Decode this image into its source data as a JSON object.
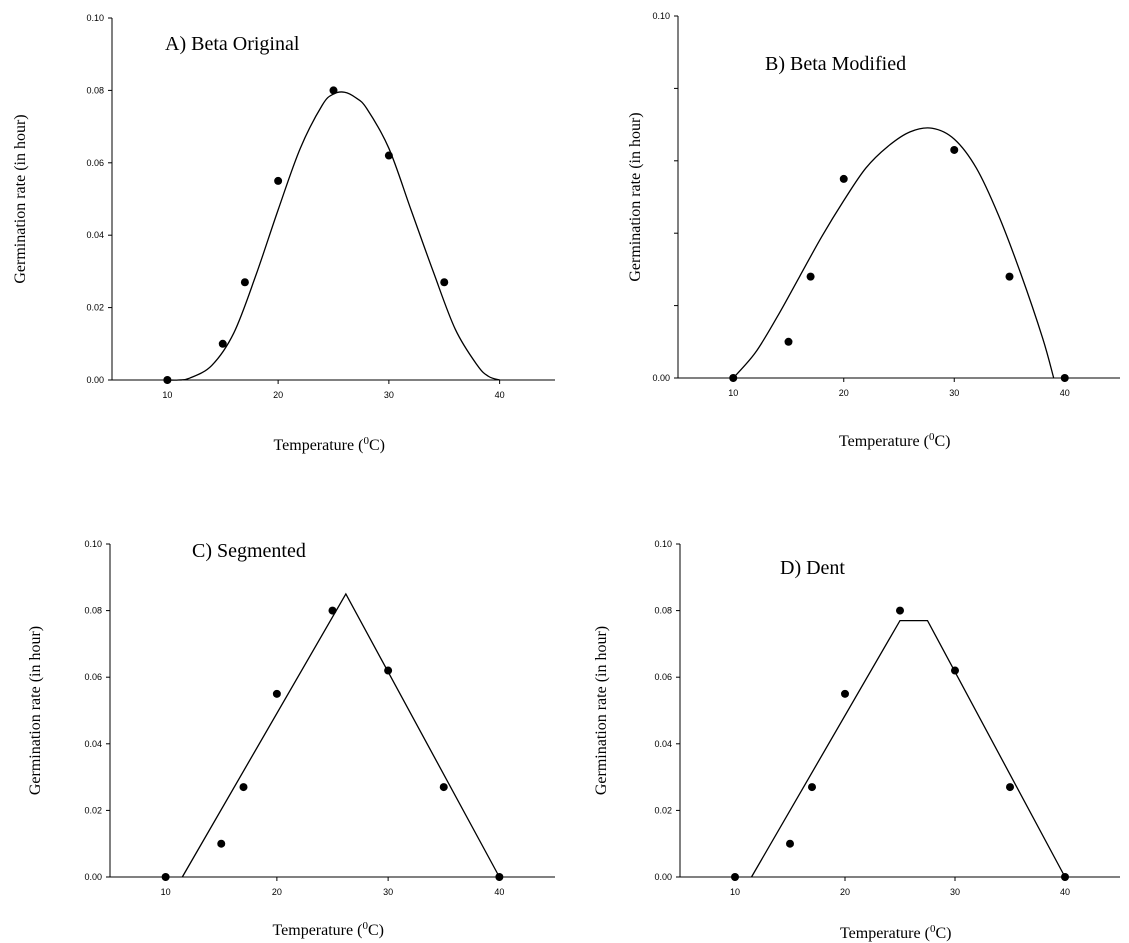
{
  "chart_data": [
    {
      "type": "scatter",
      "title": "A) Beta Original",
      "xlabel": "Temperature (",
      "xlabel_sup": "0",
      "xlabel_unit": "C)",
      "ylabel": "Germination rate (in hour)",
      "xlim": [
        5,
        45
      ],
      "ylim": [
        0,
        0.1
      ],
      "xticks": [
        "10",
        "20",
        "30",
        "40"
      ],
      "yticks": [
        "0.00",
        "0.02",
        "0.04",
        "0.06",
        "0.08",
        "0.10"
      ],
      "points": {
        "x": [
          10,
          15,
          17,
          20,
          25,
          30,
          35
        ],
        "y": [
          0,
          0.01,
          0.027,
          0.055,
          0.08,
          0.062,
          0.027
        ]
      },
      "fit": {
        "model": "beta",
        "x": [
          10,
          11,
          12,
          14,
          16,
          18,
          20,
          22,
          24,
          25,
          26,
          27,
          28,
          30,
          32,
          34,
          36,
          38,
          39,
          40
        ],
        "y": [
          0,
          0,
          0.0005,
          0.004,
          0.013,
          0.029,
          0.047,
          0.064,
          0.076,
          0.079,
          0.0795,
          0.078,
          0.075,
          0.064,
          0.047,
          0.03,
          0.014,
          0.004,
          0.001,
          0
        ]
      }
    },
    {
      "type": "scatter",
      "title": "B) Beta Modified",
      "xlabel": "Temperature (",
      "xlabel_sup": "0",
      "xlabel_unit": "C)",
      "ylabel": "Germination rate (in hour)",
      "xlim": [
        5,
        45
      ],
      "ylim": [
        0,
        0.1
      ],
      "xticks": [
        "10",
        "20",
        "30",
        "40"
      ],
      "yticks": [
        "0.00",
        "",
        "",
        "",
        "",
        "0.10"
      ],
      "points": {
        "x": [
          10,
          15,
          17,
          20,
          30,
          35,
          40
        ],
        "y": [
          0,
          0.01,
          0.028,
          0.055,
          0.063,
          0.028,
          0
        ]
      },
      "fit": {
        "model": "beta-modified",
        "x": [
          10,
          12,
          14,
          16,
          18,
          20,
          22,
          24,
          26,
          28,
          30,
          32,
          34,
          36,
          38,
          39
        ],
        "y": [
          0,
          0.007,
          0.017,
          0.028,
          0.039,
          0.049,
          0.058,
          0.064,
          0.068,
          0.069,
          0.066,
          0.058,
          0.045,
          0.029,
          0.011,
          0
        ]
      }
    },
    {
      "type": "scatter",
      "title": "C) Segmented",
      "xlabel": "Temperature (",
      "xlabel_sup": "0",
      "xlabel_unit": "C)",
      "ylabel": "Germination rate (in hour)",
      "xlim": [
        5,
        45
      ],
      "ylim": [
        0,
        0.1
      ],
      "xticks": [
        "10",
        "20",
        "30",
        "40"
      ],
      "yticks": [
        "0.00",
        "0.02",
        "0.04",
        "0.06",
        "0.08",
        "0.10"
      ],
      "points": {
        "x": [
          10,
          15,
          17,
          20,
          25,
          30,
          35,
          40
        ],
        "y": [
          0,
          0.01,
          0.027,
          0.055,
          0.08,
          0.062,
          0.027,
          0
        ]
      },
      "fit": {
        "model": "segmented",
        "x": [
          11.5,
          26.2,
          40
        ],
        "y": [
          0,
          0.085,
          0
        ]
      }
    },
    {
      "type": "scatter",
      "title": "D) Dent",
      "xlabel": "Temperature (",
      "xlabel_sup": "0",
      "xlabel_unit": "C)",
      "ylabel": "Germination rate (in hour)",
      "xlim": [
        5,
        45
      ],
      "ylim": [
        0,
        0.1
      ],
      "xticks": [
        "10",
        "20",
        "30",
        "40"
      ],
      "yticks": [
        "0.00",
        "0.02",
        "0.04",
        "0.06",
        "0.08",
        "0.10"
      ],
      "points": {
        "x": [
          10,
          15,
          17,
          20,
          25,
          30,
          35,
          40
        ],
        "y": [
          0,
          0.01,
          0.027,
          0.055,
          0.08,
          0.062,
          0.027,
          0
        ]
      },
      "fit": {
        "model": "dent",
        "x": [
          11.5,
          25,
          27.5,
          40
        ],
        "y": [
          0,
          0.077,
          0.077,
          0
        ]
      }
    }
  ]
}
